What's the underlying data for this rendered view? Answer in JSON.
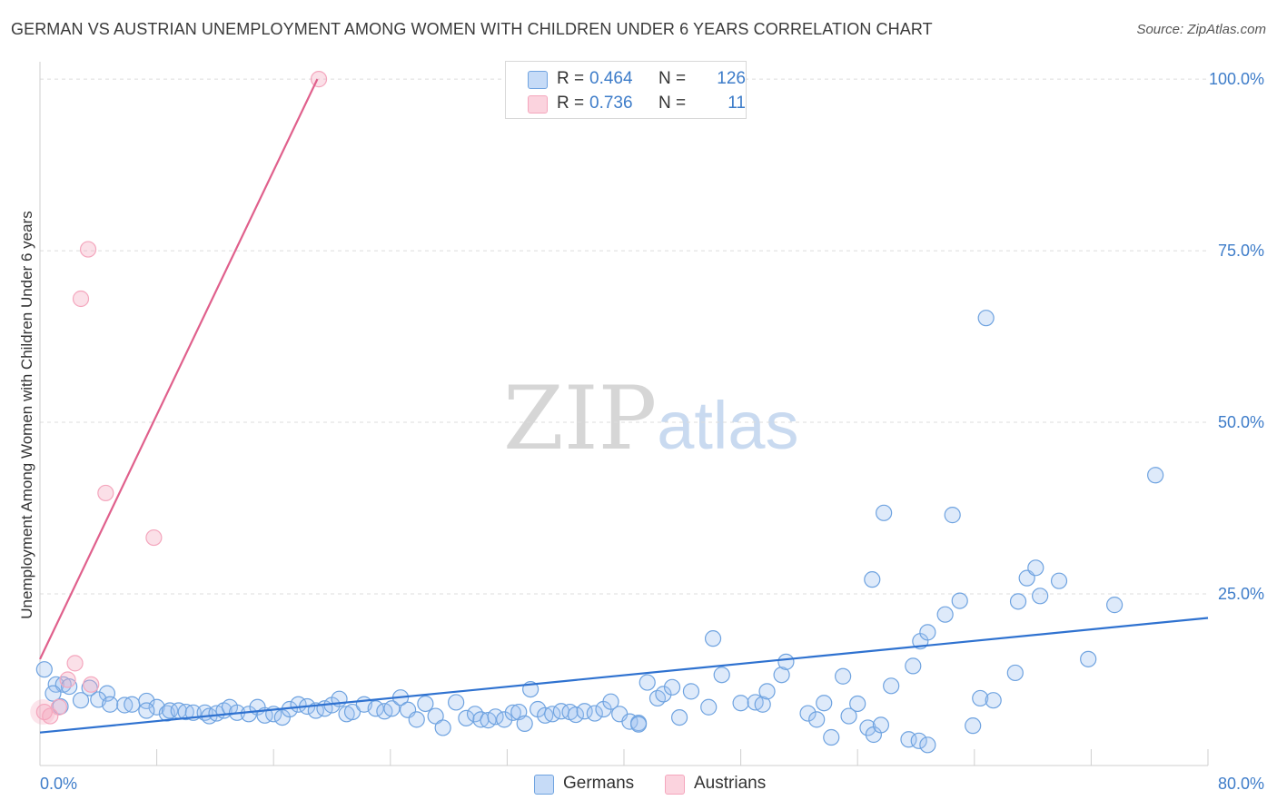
{
  "title": "GERMAN VS AUSTRIAN UNEMPLOYMENT AMONG WOMEN WITH CHILDREN UNDER 6 YEARS CORRELATION CHART",
  "source": "Source: ZipAtlas.com",
  "watermark": {
    "zip": "ZIP",
    "atlas": "atlas"
  },
  "legend": {
    "rows": [
      {
        "r_label": "R =",
        "r_value": "0.464",
        "n_label": "N =",
        "n_value": "126"
      },
      {
        "r_label": "R =",
        "r_value": "0.736",
        "n_label": "N =",
        "n_value": "11"
      }
    ]
  },
  "bottom_legend": {
    "germans": "Germans",
    "austrians": "Austrians"
  },
  "chart_data": {
    "type": "scatter",
    "title": "GERMAN VS AUSTRIAN UNEMPLOYMENT AMONG WOMEN WITH CHILDREN UNDER 6 YEARS CORRELATION CHART",
    "xlabel": "",
    "ylabel": "Unemployment Among Women with Children Under 6 years",
    "xlim": [
      0,
      80
    ],
    "ylim": [
      0,
      102
    ],
    "x_tick_labels": [
      "0.0%",
      "80.0%"
    ],
    "y_ticks": [
      25,
      50,
      75,
      100
    ],
    "y_tick_labels": [
      "25.0%",
      "50.0%",
      "75.0%",
      "100.0%"
    ],
    "grid": true,
    "colors": {
      "germans": "#6fa3e0",
      "austrians": "#f4a6bd",
      "germans_line": "#2f72d0",
      "austrians_line": "#e0608c",
      "tick_text": "#3d7cc9"
    },
    "series": [
      {
        "name": "Germans",
        "trend": [
          [
            0,
            4.8
          ],
          [
            80,
            21.5
          ]
        ],
        "points": [
          [
            0.3,
            14.0
          ],
          [
            1.1,
            11.8
          ],
          [
            1.6,
            11.8
          ],
          [
            0.9,
            10.5
          ],
          [
            2.0,
            11.5
          ],
          [
            3.4,
            11.3
          ],
          [
            4.6,
            10.5
          ],
          [
            2.8,
            9.5
          ],
          [
            4.0,
            9.6
          ],
          [
            7.3,
            9.4
          ],
          [
            1.4,
            8.6
          ],
          [
            4.8,
            8.9
          ],
          [
            5.8,
            8.8
          ],
          [
            6.3,
            8.9
          ],
          [
            8.0,
            8.5
          ],
          [
            7.3,
            8.0
          ],
          [
            8.7,
            7.6
          ],
          [
            8.9,
            8.0
          ],
          [
            9.5,
            8.0
          ],
          [
            10.0,
            7.8
          ],
          [
            10.5,
            7.7
          ],
          [
            11.3,
            7.7
          ],
          [
            11.6,
            7.2
          ],
          [
            12.1,
            7.6
          ],
          [
            12.6,
            8.0
          ],
          [
            13.0,
            8.5
          ],
          [
            13.5,
            7.7
          ],
          [
            14.3,
            7.5
          ],
          [
            14.9,
            8.5
          ],
          [
            15.4,
            7.3
          ],
          [
            16.0,
            7.5
          ],
          [
            16.6,
            7.0
          ],
          [
            17.1,
            8.2
          ],
          [
            17.7,
            8.9
          ],
          [
            18.3,
            8.6
          ],
          [
            18.9,
            8.0
          ],
          [
            19.5,
            8.3
          ],
          [
            20.0,
            8.8
          ],
          [
            20.5,
            9.7
          ],
          [
            21.0,
            7.5
          ],
          [
            21.4,
            7.8
          ],
          [
            22.2,
            8.9
          ],
          [
            23.0,
            8.3
          ],
          [
            23.6,
            7.9
          ],
          [
            24.1,
            8.3
          ],
          [
            24.7,
            9.9
          ],
          [
            25.2,
            8.1
          ],
          [
            25.8,
            6.7
          ],
          [
            26.4,
            9.0
          ],
          [
            27.1,
            7.2
          ],
          [
            27.6,
            5.5
          ],
          [
            28.5,
            9.2
          ],
          [
            29.2,
            6.9
          ],
          [
            29.8,
            7.5
          ],
          [
            30.2,
            6.7
          ],
          [
            30.7,
            6.6
          ],
          [
            31.2,
            7.1
          ],
          [
            31.8,
            6.7
          ],
          [
            32.4,
            7.7
          ],
          [
            32.8,
            7.8
          ],
          [
            33.2,
            6.1
          ],
          [
            33.6,
            11.1
          ],
          [
            34.1,
            8.2
          ],
          [
            34.6,
            7.3
          ],
          [
            35.1,
            7.5
          ],
          [
            35.7,
            7.9
          ],
          [
            36.3,
            7.8
          ],
          [
            36.7,
            7.4
          ],
          [
            37.3,
            7.9
          ],
          [
            38.0,
            7.6
          ],
          [
            38.6,
            8.2
          ],
          [
            39.1,
            9.3
          ],
          [
            39.7,
            7.5
          ],
          [
            40.4,
            6.4
          ],
          [
            41.0,
            6.2
          ],
          [
            41.6,
            12.1
          ],
          [
            42.3,
            9.8
          ],
          [
            42.7,
            10.4
          ],
          [
            43.3,
            11.4
          ],
          [
            43.8,
            7.0
          ],
          [
            44.6,
            10.8
          ],
          [
            45.8,
            8.5
          ],
          [
            41.0,
            6.0
          ],
          [
            46.1,
            18.5
          ],
          [
            46.7,
            13.2
          ],
          [
            48.0,
            9.1
          ],
          [
            49.0,
            9.2
          ],
          [
            49.5,
            8.9
          ],
          [
            49.8,
            10.8
          ],
          [
            50.8,
            13.2
          ],
          [
            51.1,
            15.1
          ],
          [
            52.6,
            7.6
          ],
          [
            53.2,
            6.7
          ],
          [
            53.7,
            9.1
          ],
          [
            54.2,
            4.1
          ],
          [
            55.0,
            13.0
          ],
          [
            55.4,
            7.2
          ],
          [
            56.0,
            9.0
          ],
          [
            56.7,
            5.5
          ],
          [
            57.1,
            4.5
          ],
          [
            57.6,
            5.9
          ],
          [
            58.3,
            11.6
          ],
          [
            57.8,
            36.8
          ],
          [
            57.0,
            27.1
          ],
          [
            59.5,
            3.8
          ],
          [
            60.2,
            3.6
          ],
          [
            60.8,
            3.0
          ],
          [
            59.8,
            14.5
          ],
          [
            60.3,
            18.1
          ],
          [
            60.8,
            19.4
          ],
          [
            62.0,
            22.0
          ],
          [
            63.0,
            24.0
          ],
          [
            62.5,
            36.5
          ],
          [
            63.9,
            5.8
          ],
          [
            64.8,
            65.2
          ],
          [
            64.4,
            9.8
          ],
          [
            65.3,
            9.5
          ],
          [
            66.8,
            13.5
          ],
          [
            67.0,
            23.9
          ],
          [
            67.6,
            27.3
          ],
          [
            68.2,
            28.8
          ],
          [
            68.5,
            24.7
          ],
          [
            69.8,
            26.9
          ],
          [
            71.8,
            15.5
          ],
          [
            76.4,
            42.3
          ],
          [
            73.6,
            23.4
          ]
        ]
      },
      {
        "name": "Austrians",
        "trend": [
          [
            0,
            15.5
          ],
          [
            19,
            100
          ]
        ],
        "points": [
          [
            0.3,
            7.8
          ],
          [
            0.7,
            7.2
          ],
          [
            1.3,
            8.5
          ],
          [
            1.9,
            12.5
          ],
          [
            2.4,
            14.9
          ],
          [
            3.5,
            11.8
          ],
          [
            4.5,
            39.7
          ],
          [
            2.8,
            68.0
          ],
          [
            3.3,
            75.2
          ],
          [
            7.8,
            33.2
          ],
          [
            19.1,
            100.0
          ]
        ]
      }
    ]
  }
}
